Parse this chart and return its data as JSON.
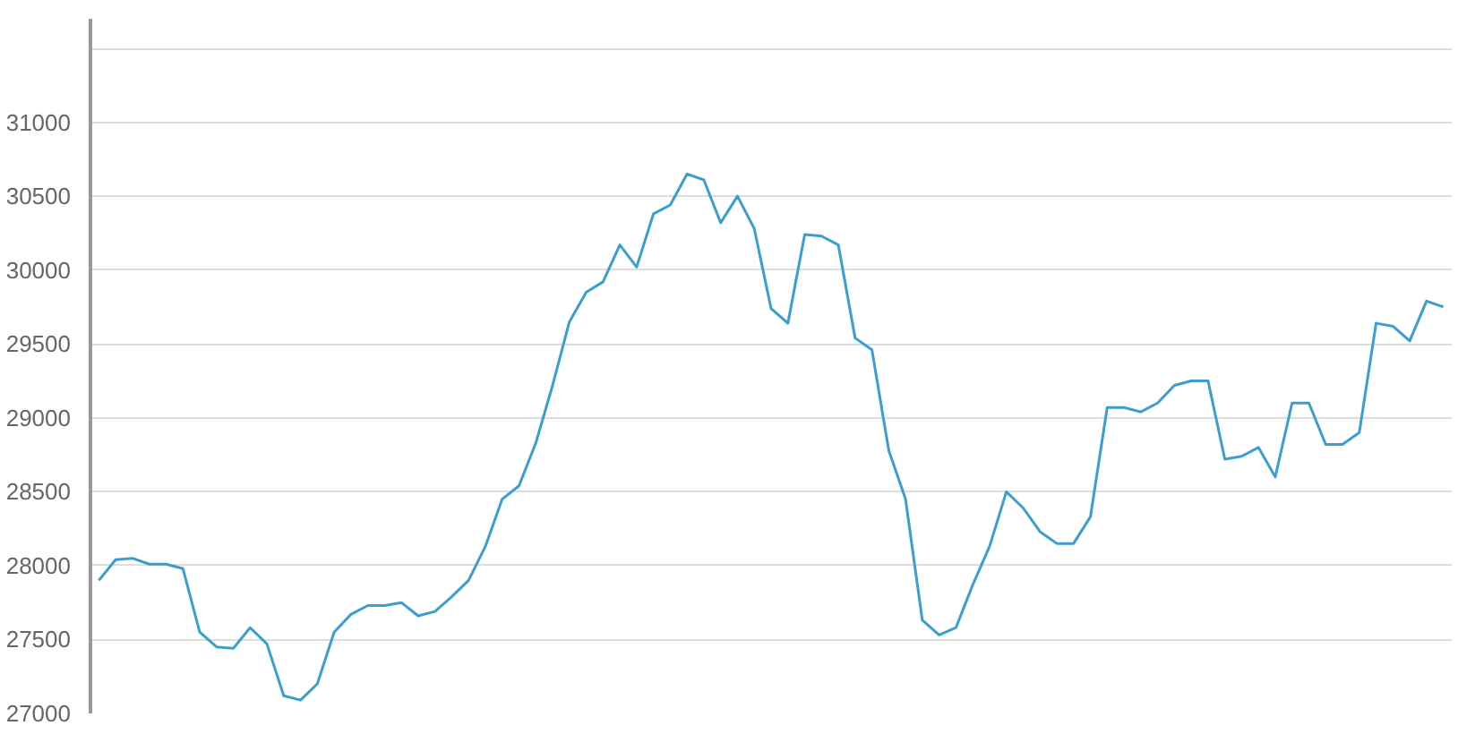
{
  "chart_data": {
    "type": "line",
    "categories": [
      null,
      null,
      null,
      null,
      null,
      null,
      null,
      null,
      null,
      null,
      null,
      null,
      null,
      null,
      null,
      null,
      null,
      null,
      null,
      null,
      null,
      null,
      null,
      null,
      null,
      null,
      null,
      null,
      null,
      null,
      null,
      null,
      null,
      null,
      null,
      null,
      null,
      null,
      null,
      null,
      null,
      null,
      null,
      null,
      null,
      null,
      null,
      null,
      null,
      null,
      null,
      null,
      null,
      null,
      null,
      null,
      null,
      null,
      null,
      null,
      null,
      null,
      null,
      null,
      null,
      null,
      null,
      null,
      null,
      null,
      null,
      null,
      null,
      null,
      null,
      null,
      null,
      null,
      null,
      null,
      null
    ],
    "series": [
      {
        "color": "#3a9fd0",
        "values": [
          27900,
          28040,
          28050,
          28010,
          28010,
          27980,
          27550,
          27450,
          27440,
          27580,
          27470,
          27120,
          27090,
          27200,
          27550,
          27670,
          27730,
          27730,
          27750,
          27660,
          27690,
          27790,
          27900,
          28130,
          28450,
          28540,
          28830,
          29220,
          29650,
          29850,
          29920,
          30170,
          30020,
          30380,
          30440,
          30650,
          30610,
          30320,
          30500,
          30280,
          29740,
          29640,
          30240,
          30230,
          30170,
          29540,
          29460,
          28780,
          28450,
          27630,
          27530,
          27580,
          27870,
          28130,
          28500,
          28390,
          28230,
          28150,
          28150,
          28330,
          29070,
          29070,
          29040,
          29100,
          29220,
          29250,
          29250,
          28720,
          28740,
          28800,
          28600,
          29100,
          29100,
          28820,
          28820,
          28900,
          29640,
          29620,
          29520,
          29790,
          29750
        ]
      }
    ],
    "ylim": [
      27000,
      31700
    ],
    "yticks": [
      27000,
      27500,
      28000,
      28500,
      29000,
      29500,
      30000,
      30500,
      31000,
      {
        "value": 31500,
        "label": null
      }
    ],
    "grid": "y",
    "tick_labels": "y",
    "marker": "none",
    "line_style": "solid"
  }
}
